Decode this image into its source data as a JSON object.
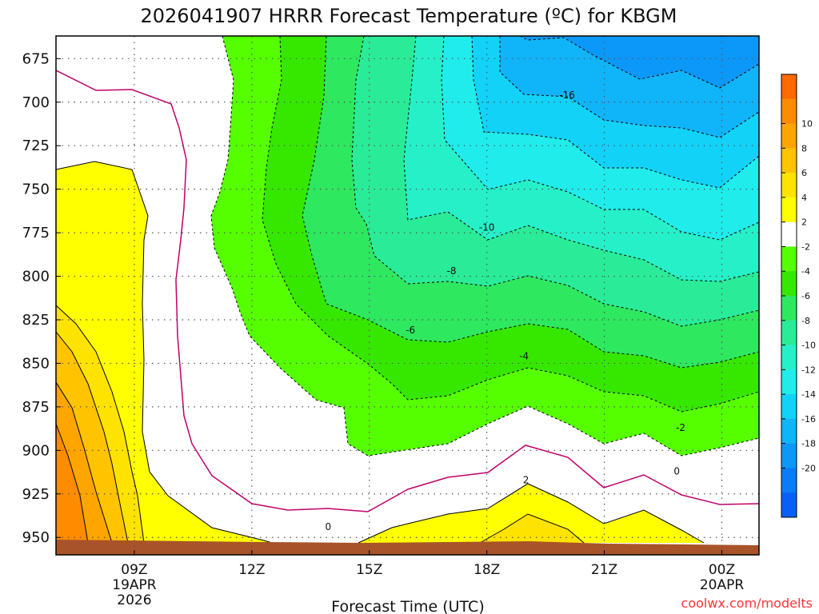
{
  "title": "2026041907 HRRR Forecast Temperature (ºC) for KBGM",
  "xlabel": "Forecast Time (UTC)",
  "credit": "coolwx.com/modelts",
  "chart_data": {
    "type": "contour-filled",
    "title": "2026041907 HRRR Forecast Temperature (ºC) for KBGM",
    "xlabel": "Forecast Time (UTC)",
    "ylabel": "",
    "y_ticks": [
      675,
      700,
      725,
      750,
      775,
      800,
      825,
      850,
      875,
      900,
      925,
      950
    ],
    "y_range_hpa": [
      662,
      960
    ],
    "x_range_hours_utc": [
      7,
      24.95
    ],
    "x_ticks": [
      {
        "hour": 9,
        "label": "09Z",
        "sub1": "19APR",
        "sub2": "2026"
      },
      {
        "hour": 12,
        "label": "12Z"
      },
      {
        "hour": 15,
        "label": "15Z"
      },
      {
        "hour": 18,
        "label": "18Z"
      },
      {
        "hour": 21,
        "label": "21Z"
      },
      {
        "hour": 24,
        "label": "00Z",
        "sub1": "20APR"
      }
    ],
    "grid": true,
    "colorbar": {
      "labels": [
        10,
        8,
        6,
        4,
        2,
        -2,
        -4,
        -6,
        -8,
        -10,
        -12,
        -14,
        -16,
        -18,
        -20
      ],
      "colors": [
        "#ff6a00",
        "#ff8c00",
        "#ffa500",
        "#ffc300",
        "#ffe300",
        "#ffff00",
        "#ffffff",
        "#56ff00",
        "#36e800",
        "#2ee860",
        "#2aec98",
        "#26f0c8",
        "#20ecec",
        "#12d2f8",
        "#10b4f8",
        "#0c98f8",
        "#0a7cf8",
        "#0860f8"
      ]
    },
    "contour_labels": [
      {
        "text": "-16",
        "hour": 20.05,
        "hpa": 696
      },
      {
        "text": "-10",
        "hour": 18.0,
        "hpa": 772
      },
      {
        "text": "-8",
        "hour": 17.1,
        "hpa": 797
      },
      {
        "text": "-6",
        "hour": 16.05,
        "hpa": 831
      },
      {
        "text": "-4",
        "hour": 18.95,
        "hpa": 846
      },
      {
        "text": "-2",
        "hour": 22.95,
        "hpa": 887
      },
      {
        "text": "0",
        "hour": 22.85,
        "hpa": 912
      },
      {
        "text": "0",
        "hour": 13.95,
        "hpa": 944
      },
      {
        "text": "2",
        "hour": 19.0,
        "hpa": 917
      }
    ]
  }
}
